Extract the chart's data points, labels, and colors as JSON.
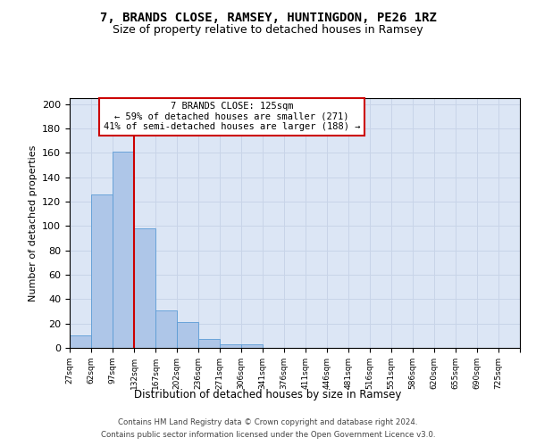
{
  "title1": "7, BRANDS CLOSE, RAMSEY, HUNTINGDON, PE26 1RZ",
  "title2": "Size of property relative to detached houses in Ramsey",
  "xlabel": "Distribution of detached houses by size in Ramsey",
  "ylabel": "Number of detached properties",
  "bin_labels": [
    "27sqm",
    "62sqm",
    "97sqm",
    "132sqm",
    "167sqm",
    "202sqm",
    "236sqm",
    "271sqm",
    "306sqm",
    "341sqm",
    "376sqm",
    "411sqm",
    "446sqm",
    "481sqm",
    "516sqm",
    "551sqm",
    "586sqm",
    "620sqm",
    "655sqm",
    "690sqm",
    "725sqm"
  ],
  "bar_values": [
    10,
    126,
    161,
    98,
    31,
    21,
    7,
    3,
    3,
    0,
    0,
    0,
    0,
    0,
    0,
    0,
    0,
    0,
    0,
    0,
    0
  ],
  "bar_color": "#aec6e8",
  "bar_edge_color": "#5b9bd5",
  "grid_color": "#c8d4e8",
  "background_color": "#dce6f5",
  "vline_x": 3,
  "vline_color": "#cc0000",
  "annotation_line1": "7 BRANDS CLOSE: 125sqm",
  "annotation_line2": "← 59% of detached houses are smaller (271)",
  "annotation_line3": "41% of semi-detached houses are larger (188) →",
  "annotation_box_color": "#ffffff",
  "annotation_box_edge": "#cc0000",
  "footer1": "Contains HM Land Registry data © Crown copyright and database right 2024.",
  "footer2": "Contains public sector information licensed under the Open Government Licence v3.0.",
  "ylim_max": 205,
  "yticks": [
    0,
    20,
    40,
    60,
    80,
    100,
    120,
    140,
    160,
    180,
    200
  ]
}
